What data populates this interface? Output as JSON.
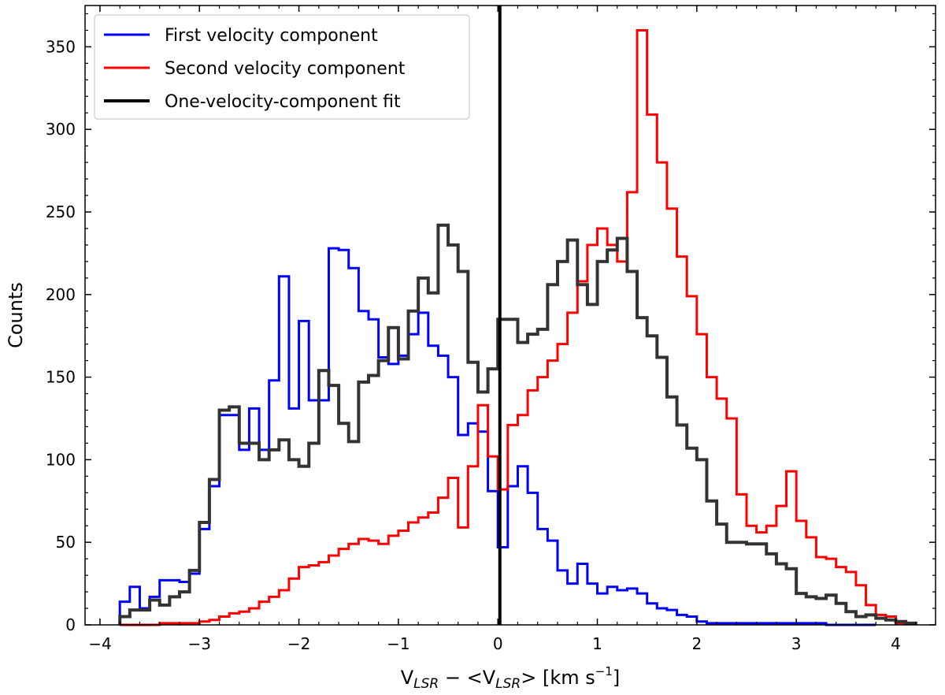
{
  "chart_data": {
    "type": "histogram",
    "title": "",
    "xlabel": {
      "main": "V",
      "sub": "LSR",
      "mid": " − <V",
      "sub2": "LSR",
      "tail": "> [km s",
      "sup": "−1",
      "end": "]"
    },
    "ylabel": "Counts",
    "xlim": [
      -4.15,
      4.4
    ],
    "ylim": [
      0,
      375
    ],
    "x_ticks": [
      -4,
      -3,
      -2,
      -1,
      0,
      1,
      2,
      3,
      4
    ],
    "x_tick_labels": [
      "−4",
      "−3",
      "−2",
      "−1",
      "0",
      "1",
      "2",
      "3",
      "4"
    ],
    "y_ticks": [
      0,
      50,
      100,
      150,
      200,
      250,
      300,
      350
    ],
    "y_tick_labels": [
      "0",
      "50",
      "100",
      "150",
      "200",
      "250",
      "300",
      "350"
    ],
    "bin_start": -3.8,
    "bin_width": 0.1,
    "vertical_line_x": 0.02,
    "legend": {
      "position": "upper-left",
      "entries": [
        "First velocity component",
        "Second velocity component",
        "One-velocity-component fit"
      ]
    },
    "series": [
      {
        "name": "First velocity component",
        "color": "#0000ff",
        "values": [
          14,
          23,
          10,
          17,
          27,
          27,
          26,
          31,
          58,
          84,
          127,
          127,
          106,
          131,
          106,
          148,
          211,
          131,
          184,
          136,
          136,
          228,
          227,
          216,
          190,
          185,
          162,
          158,
          163,
          176,
          189,
          169,
          163,
          150,
          115,
          122,
          117,
          81,
          47,
          84,
          96,
          80,
          58,
          51,
          33,
          25,
          37,
          25,
          19,
          23,
          21,
          22,
          19,
          13,
          10,
          9,
          6,
          5,
          2,
          1,
          1,
          1,
          1,
          1,
          1,
          1,
          1,
          1,
          1,
          1,
          1,
          0,
          0,
          0,
          0,
          0
        ]
      },
      {
        "name": "Second velocity component",
        "color": "#ff0000",
        "values": [
          0,
          0,
          0,
          0,
          1,
          1,
          1,
          1,
          2,
          3,
          5,
          7,
          8,
          10,
          14,
          17,
          21,
          28,
          35,
          36,
          38,
          42,
          46,
          49,
          52,
          51,
          49,
          54,
          57,
          62,
          65,
          68,
          77,
          89,
          59,
          96,
          133,
          102,
          82,
          121,
          127,
          142,
          150,
          160,
          170,
          189,
          208,
          230,
          240,
          230,
          220,
          262,
          360,
          309,
          280,
          252,
          223,
          199,
          176,
          150,
          137,
          125,
          79,
          60,
          56,
          60,
          72,
          93,
          63,
          53,
          41,
          40,
          35,
          32,
          24,
          12,
          6,
          5,
          1
        ]
      },
      {
        "name": "One-velocity-component fit",
        "color": "#333333",
        "values": [
          5,
          9,
          9,
          15,
          12,
          17,
          20,
          33,
          62,
          88,
          130,
          132,
          110,
          110,
          100,
          106,
          112,
          100,
          96,
          110,
          154,
          145,
          122,
          111,
          147,
          151,
          160,
          180,
          161,
          190,
          210,
          201,
          242,
          230,
          214,
          159,
          141,
          155,
          185,
          185,
          171,
          176,
          179,
          206,
          220,
          233,
          206,
          194,
          220,
          227,
          234,
          214,
          186,
          175,
          162,
          138,
          121,
          107,
          100,
          75,
          61,
          50,
          50,
          49,
          49,
          43,
          37,
          34,
          19,
          17,
          16,
          18,
          13,
          8,
          5,
          6,
          4,
          3,
          2,
          1
        ]
      }
    ]
  }
}
